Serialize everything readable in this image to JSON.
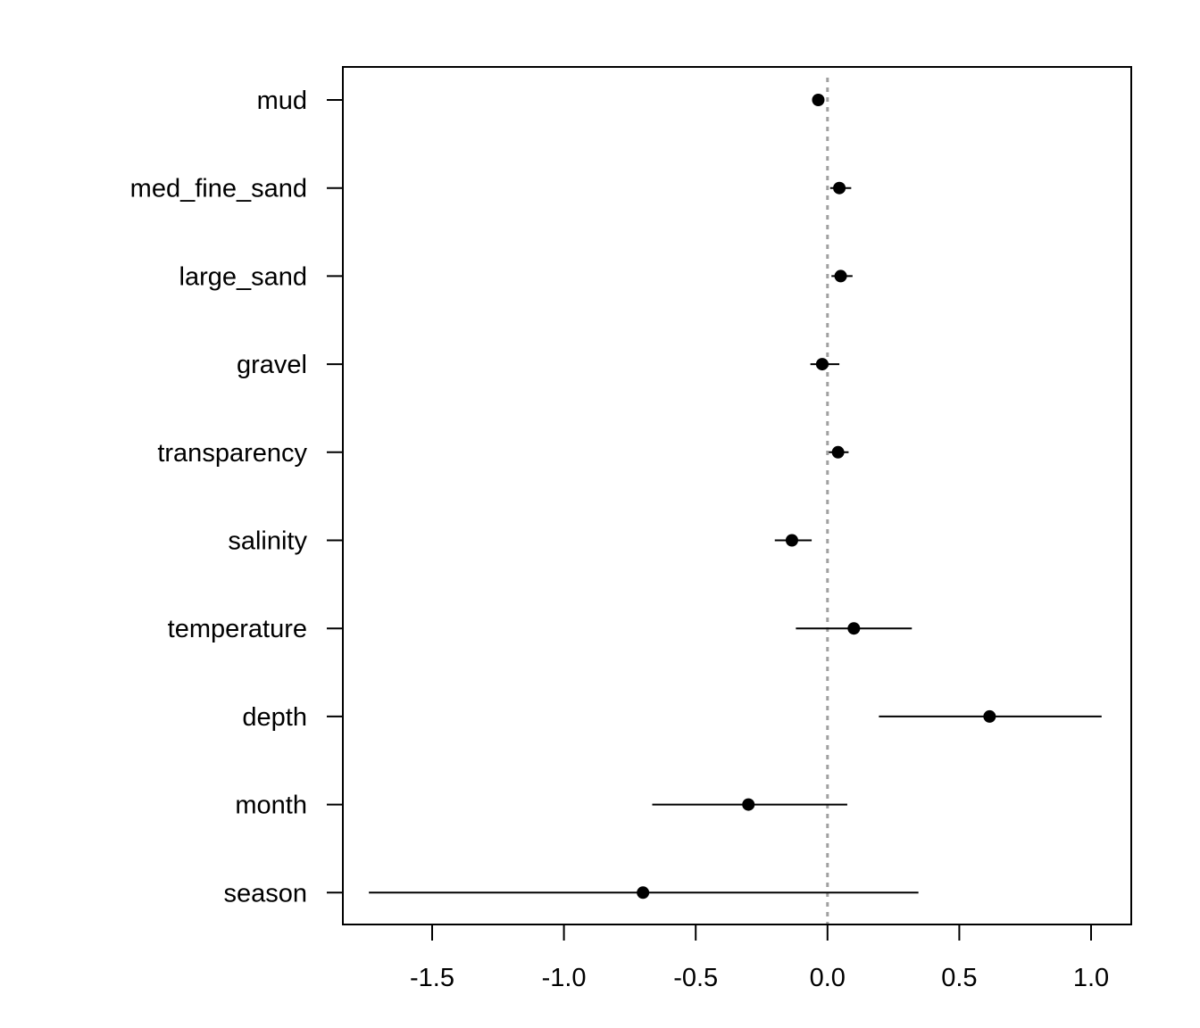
{
  "chart_data": {
    "type": "scatter",
    "title": "",
    "xlabel": "",
    "ylabel": "",
    "xlim": [
      -1.84,
      1.15
    ],
    "x_ticks": [
      {
        "value": -1.5,
        "label": "-1.5"
      },
      {
        "value": -1.0,
        "label": "-1.0"
      },
      {
        "value": -0.5,
        "label": "-0.5"
      },
      {
        "value": 0.0,
        "label": "0.0"
      },
      {
        "value": 0.5,
        "label": "0.5"
      },
      {
        "value": 1.0,
        "label": "1.0"
      }
    ],
    "reference_line": {
      "x": 0,
      "style": "dotted",
      "color": "#a0a0a0"
    },
    "grid": false,
    "categories": [
      "mud",
      "med_fine_sand",
      "large_sand",
      "gravel",
      "transparency",
      "salinity",
      "temperature",
      "depth",
      "month",
      "season"
    ],
    "points": [
      {
        "label": "mud",
        "estimate": -0.035,
        "lower": -0.045,
        "upper": -0.025
      },
      {
        "label": "med_fine_sand",
        "estimate": 0.045,
        "lower": 0.01,
        "upper": 0.09
      },
      {
        "label": "large_sand",
        "estimate": 0.05,
        "lower": 0.015,
        "upper": 0.095
      },
      {
        "label": "gravel",
        "estimate": -0.02,
        "lower": -0.065,
        "upper": 0.045
      },
      {
        "label": "transparency",
        "estimate": 0.04,
        "lower": 0.005,
        "upper": 0.08
      },
      {
        "label": "salinity",
        "estimate": -0.135,
        "lower": -0.2,
        "upper": -0.06
      },
      {
        "label": "temperature",
        "estimate": 0.1,
        "lower": -0.12,
        "upper": 0.32
      },
      {
        "label": "depth",
        "estimate": 0.615,
        "lower": 0.195,
        "upper": 1.04
      },
      {
        "label": "month",
        "estimate": -0.3,
        "lower": -0.665,
        "upper": 0.075
      },
      {
        "label": "season",
        "estimate": -0.7,
        "lower": -1.74,
        "upper": 0.345
      }
    ],
    "colors": {
      "points": "#000000",
      "reference": "#a0a0a0",
      "axis": "#000000"
    }
  }
}
